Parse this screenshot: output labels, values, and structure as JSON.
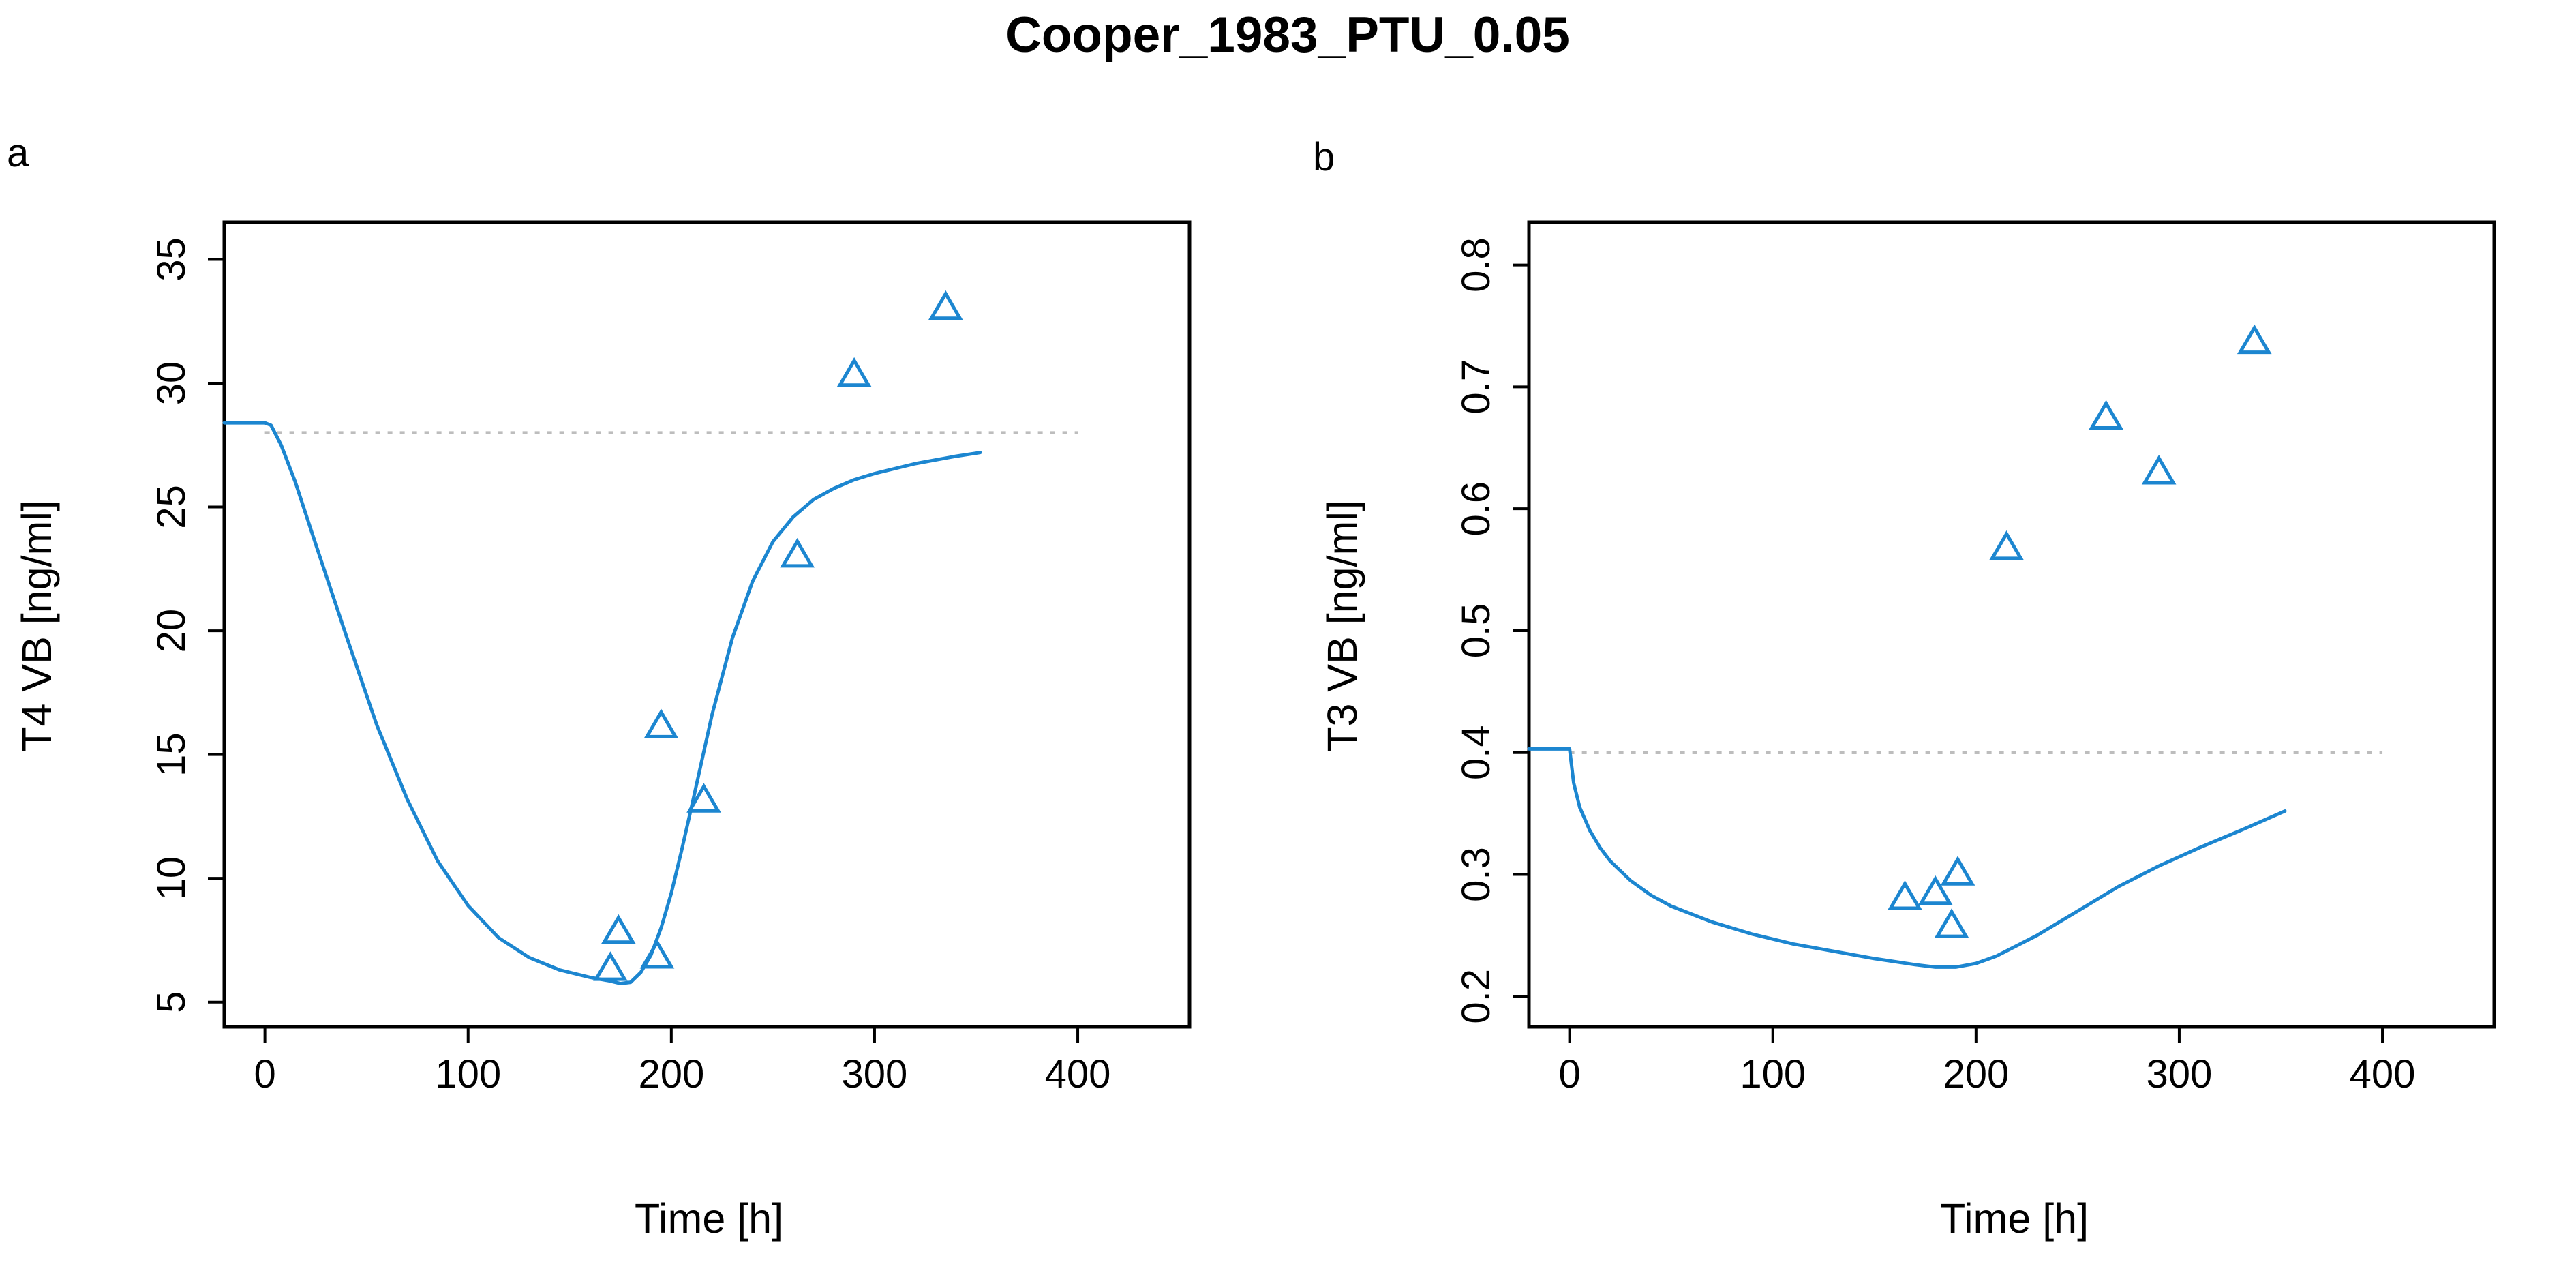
{
  "title": "Cooper_1983_PTU_0.05",
  "colors": {
    "model": "#1C86D0",
    "observed": "#1C86D0",
    "reference": "#BDBDBD",
    "axis": "#000000"
  },
  "chart_data": [
    {
      "panel": "a",
      "type": "line",
      "xlabel": "Time [h]",
      "ylabel": "T4 VB [ng/ml]",
      "xlim": [
        -20,
        455
      ],
      "ylim": [
        4.0,
        36.5
      ],
      "xticks": [
        0,
        100,
        200,
        300,
        400
      ],
      "yticks": [
        5,
        10,
        15,
        20,
        25,
        30,
        35
      ],
      "grid": false,
      "reference_line": {
        "y": 28.0,
        "x": [
          0,
          400
        ],
        "style": "dotted"
      },
      "series": [
        {
          "kind": "line",
          "x": [
            -20,
            -5,
            0,
            3,
            8,
            15,
            25,
            40,
            55,
            70,
            85,
            100,
            115,
            130,
            145,
            160,
            170,
            175,
            180,
            185,
            190,
            195,
            200,
            205,
            210,
            220,
            230,
            240,
            250,
            260,
            270,
            280,
            290,
            300,
            320,
            340,
            352
          ],
          "y": [
            28.4,
            28.4,
            28.4,
            28.3,
            27.5,
            26.0,
            23.5,
            19.8,
            16.2,
            13.2,
            10.7,
            8.9,
            7.6,
            6.8,
            6.3,
            6.0,
            5.85,
            5.75,
            5.8,
            6.2,
            6.9,
            8.0,
            9.4,
            11.1,
            12.9,
            16.6,
            19.7,
            22.0,
            23.6,
            24.6,
            25.3,
            25.75,
            26.1,
            26.35,
            26.75,
            27.05,
            27.2
          ]
        },
        {
          "kind": "scatter",
          "marker": "triangle",
          "x": [
            170,
            174,
            193,
            195,
            216,
            262,
            290,
            335
          ],
          "y": [
            6.3,
            7.8,
            6.8,
            16.1,
            13.1,
            23.0,
            30.3,
            33.0
          ]
        }
      ]
    },
    {
      "panel": "b",
      "type": "line",
      "xlabel": "Time [h]",
      "ylabel": "T3 VB [ng/ml]",
      "xlim": [
        -20,
        455
      ],
      "ylim": [
        0.175,
        0.835
      ],
      "xticks": [
        0,
        100,
        200,
        300,
        400
      ],
      "yticks": [
        0.2,
        0.3,
        0.4,
        0.5,
        0.6,
        0.7,
        0.8
      ],
      "grid": false,
      "reference_line": {
        "y": 0.4,
        "x": [
          0,
          400
        ],
        "style": "dotted"
      },
      "series": [
        {
          "kind": "line",
          "x": [
            -20,
            -5,
            0,
            2,
            5,
            10,
            15,
            20,
            30,
            40,
            50,
            70,
            90,
            110,
            130,
            150,
            170,
            180,
            190,
            200,
            210,
            230,
            250,
            270,
            290,
            310,
            330,
            352
          ],
          "y": [
            0.403,
            0.403,
            0.403,
            0.375,
            0.355,
            0.336,
            0.322,
            0.311,
            0.295,
            0.283,
            0.274,
            0.261,
            0.251,
            0.243,
            0.237,
            0.231,
            0.226,
            0.224,
            0.224,
            0.227,
            0.233,
            0.25,
            0.27,
            0.29,
            0.307,
            0.322,
            0.336,
            0.352
          ]
        },
        {
          "kind": "scatter",
          "marker": "triangle",
          "x": [
            165,
            180,
            188,
            191,
            215,
            264,
            290,
            337
          ],
          "y": [
            0.28,
            0.284,
            0.257,
            0.3,
            0.567,
            0.674,
            0.629,
            0.736
          ]
        }
      ]
    }
  ]
}
